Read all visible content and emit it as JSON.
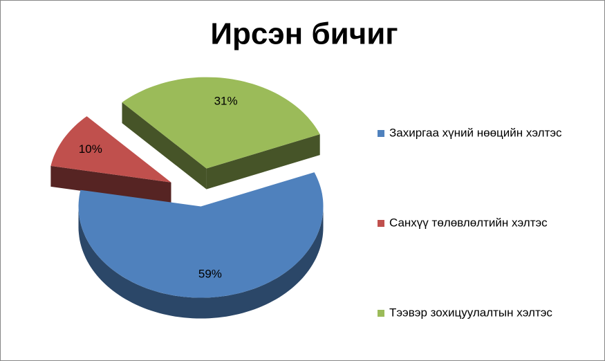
{
  "chart_data": {
    "type": "pie3d",
    "title": "Ирсэн бичиг",
    "categories": [
      "Захиргаа хүний нөөцийн хэлтэс",
      "Санхүү төлөвлөлтийн хэлтэс",
      "Тээвэр зохицуулалтын хэлтэс"
    ],
    "values": [
      59,
      10,
      31
    ],
    "value_labels": [
      "59%",
      "10%",
      "31%"
    ],
    "colors": [
      "#4f81bd",
      "#c0504d",
      "#9bbb59"
    ],
    "legend": "right"
  }
}
